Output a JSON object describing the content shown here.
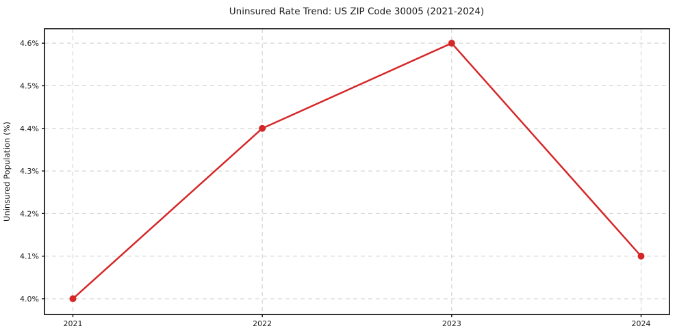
{
  "chart_data": {
    "type": "line",
    "title": "Uninsured Rate Trend: US ZIP Code 30005 (2021-2024)",
    "xlabel": "",
    "ylabel": "Uninsured Population (%)",
    "categories": [
      "2021",
      "2022",
      "2023",
      "2024"
    ],
    "values": [
      4.0,
      4.4,
      4.6,
      4.1
    ],
    "yticks": [
      4.0,
      4.1,
      4.2,
      4.3,
      4.4,
      4.5,
      4.6
    ],
    "ytick_labels": [
      "4.0%",
      "4.1%",
      "4.2%",
      "4.3%",
      "4.4%",
      "4.5%",
      "4.6%"
    ],
    "ylim": [
      3.963,
      4.634
    ],
    "grid": true,
    "legend": false,
    "marker": "circle",
    "colors": {
      "line": "#d62728",
      "marker": "#d62728",
      "grid": "#cccccc",
      "frame": "#000000",
      "text": "#1a1a1a",
      "background": "#ffffff"
    }
  }
}
